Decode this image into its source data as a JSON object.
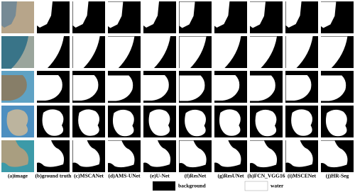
{
  "columns": [
    "(a)image",
    "(b)ground truth",
    "(c)MSCANet",
    "(d)AMS-UNet",
    "(e)U-Net",
    "(f)ResNet",
    "(g)ResUNet",
    "(h)FCN_VGG16",
    "(i)MSCENet",
    "(j)HR-Seg"
  ],
  "legend": {
    "background": "background",
    "water": "water"
  }
}
